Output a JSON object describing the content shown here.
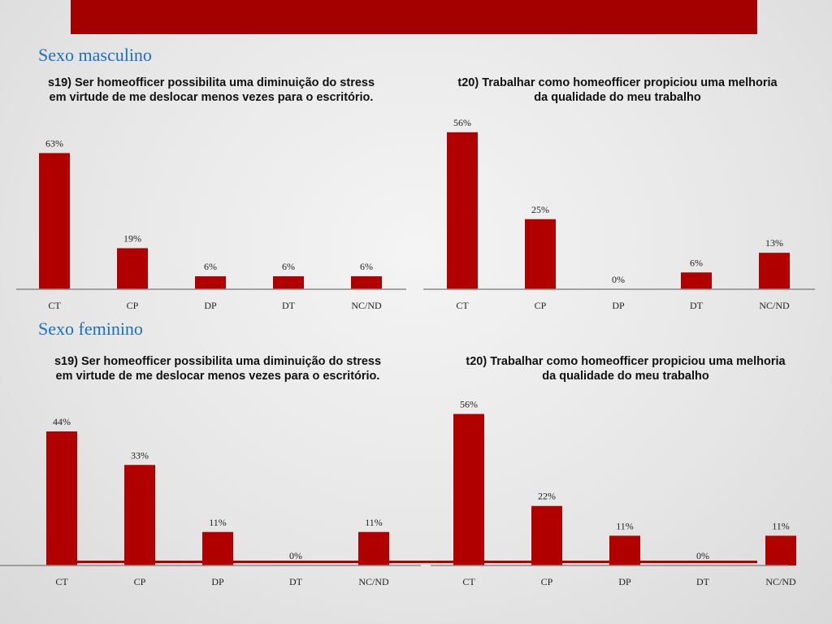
{
  "sections": {
    "male": "Sexo masculino",
    "female": "Sexo feminino"
  },
  "colors": {
    "bar": "#b00000",
    "banner": "#a50000",
    "section_title": "#1a6fc2"
  },
  "chart_data": [
    {
      "id": "male-s19",
      "type": "bar",
      "title": "s19) Ser homeofficer possibilita uma diminuição do stress em virtude de me deslocar menos vezes para o escritório.",
      "categories": [
        "CT",
        "CP",
        "DP",
        "DT",
        "NC/ND"
      ],
      "values": [
        63,
        19,
        6,
        6,
        6
      ],
      "labels": [
        "63%",
        "19%",
        "6%",
        "6%",
        "6%"
      ],
      "unit": "%",
      "ylim": [
        0,
        100
      ],
      "grid": false
    },
    {
      "id": "male-t20",
      "type": "bar",
      "title": "t20) Trabalhar como homeofficer propiciou uma melhoria da qualidade do meu trabalho",
      "categories": [
        "CT",
        "CP",
        "DP",
        "DT",
        "NC/ND"
      ],
      "values": [
        56,
        25,
        0,
        6,
        13
      ],
      "labels": [
        "56%",
        "25%",
        "0%",
        "6%",
        "13%"
      ],
      "unit": "%",
      "ylim": [
        0,
        100
      ],
      "grid": false
    },
    {
      "id": "female-s19",
      "type": "bar",
      "title": "s19) Ser homeofficer possibilita uma diminuição do stress em virtude de me deslocar menos vezes para o escritório.",
      "categories": [
        "CT",
        "CP",
        "DP",
        "DT",
        "NC/ND"
      ],
      "values": [
        44,
        33,
        11,
        0,
        11
      ],
      "labels": [
        "44%",
        "33%",
        "11%",
        "0%",
        "11%"
      ],
      "unit": "%",
      "ylim": [
        0,
        100
      ],
      "grid": false
    },
    {
      "id": "female-t20",
      "type": "bar",
      "title": "t20) Trabalhar como homeofficer propiciou uma melhoria da qualidade do meu trabalho",
      "categories": [
        "CT",
        "CP",
        "DP",
        "DT",
        "NC/ND"
      ],
      "values": [
        56,
        22,
        11,
        0,
        11
      ],
      "labels": [
        "56%",
        "22%",
        "11%",
        "0%",
        "11%"
      ],
      "unit": "%",
      "ylim": [
        0,
        100
      ],
      "grid": false
    }
  ]
}
